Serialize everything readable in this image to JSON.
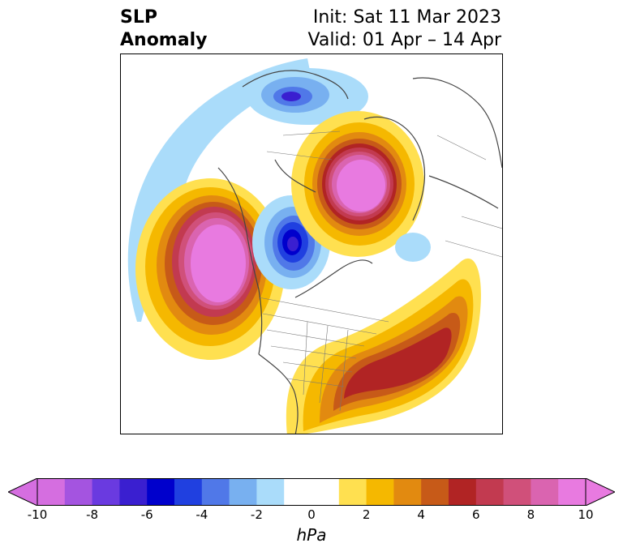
{
  "header": {
    "title_line1": "SLP",
    "title_line2": "Anomaly",
    "init_text": "Init: Sat 11 Mar 2023",
    "valid_text": "Valid: 01 Apr – 14 Apr"
  },
  "colorbar": {
    "unit": "hPa",
    "tick_labels": [
      "-10",
      "-8",
      "-6",
      "-4",
      "-2",
      "0",
      "2",
      "4",
      "6",
      "8",
      "10"
    ],
    "min": -10,
    "max": 10,
    "colors": [
      "#d56ee0",
      "#a454e0",
      "#6a3ae0",
      "#3a1fd0",
      "#0000cc",
      "#2040e0",
      "#5078e8",
      "#78b0f0",
      "#aadcfa",
      "#ffffff",
      "#ffffff",
      "#ffe050",
      "#f5b800",
      "#e28a10",
      "#c75a18",
      "#b12424",
      "#c23a50",
      "#d0507a",
      "#da64b0",
      "#e87ae0"
    ]
  }
}
